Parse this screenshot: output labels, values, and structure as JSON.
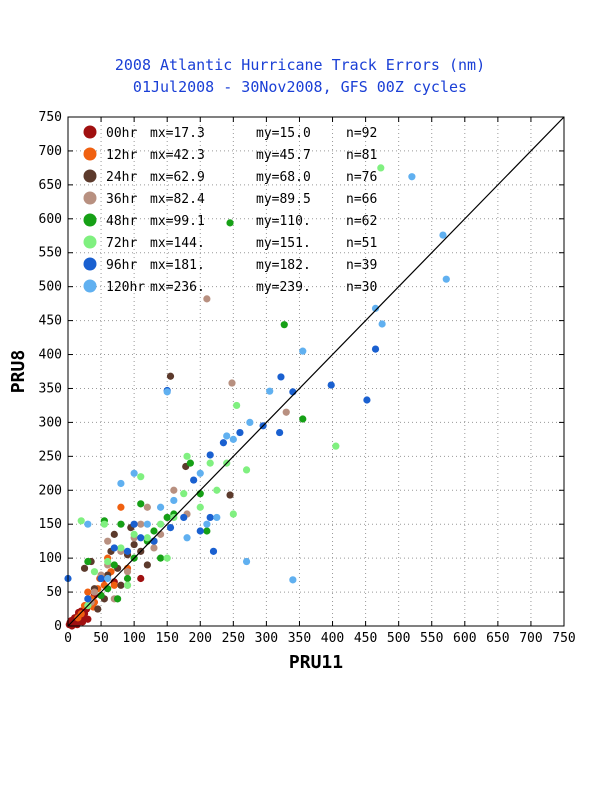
{
  "chart_data": {
    "type": "scatter",
    "title": "2008 Atlantic Hurricane Track Errors (nm)",
    "subtitle": "01Jul2008 - 30Nov2008, GFS 00Z cycles",
    "xlabel": "PRU11",
    "ylabel": "PRU8",
    "xlim": [
      0,
      750
    ],
    "ylim": [
      0,
      750
    ],
    "xticks": [
      "0",
      "50",
      "100",
      "150",
      "200",
      "250",
      "300",
      "350",
      "400",
      "450",
      "500",
      "550",
      "600",
      "650",
      "700",
      "750"
    ],
    "yticks": [
      "0",
      "50",
      "100",
      "150",
      "200",
      "250",
      "300",
      "350",
      "400",
      "450",
      "500",
      "550",
      "600",
      "650",
      "700",
      "750"
    ],
    "grid": true,
    "diagonal": true,
    "legend_position": "top-left",
    "series": [
      {
        "name": "00hr",
        "color": "#a01010",
        "mx": "mx=17.3",
        "my": "my=15.0",
        "n": "n=92",
        "points": [
          [
            2,
            2
          ],
          [
            5,
            8
          ],
          [
            8,
            3
          ],
          [
            10,
            12
          ],
          [
            12,
            5
          ],
          [
            15,
            15
          ],
          [
            18,
            10
          ],
          [
            20,
            22
          ],
          [
            22,
            6
          ],
          [
            25,
            18
          ],
          [
            28,
            25
          ],
          [
            30,
            10
          ],
          [
            33,
            30
          ],
          [
            6,
            0
          ],
          [
            3,
            5
          ],
          [
            14,
            2
          ],
          [
            40,
            45
          ],
          [
            55,
            70
          ],
          [
            70,
            65
          ],
          [
            110,
            70
          ],
          [
            16,
            20
          ],
          [
            9,
            9
          ],
          [
            24,
            14
          ]
        ]
      },
      {
        "name": "12hr",
        "color": "#f06010",
        "mx": "mx=42.3",
        "my": "my=45.7",
        "n": "n=81",
        "points": [
          [
            25,
            30
          ],
          [
            35,
            40
          ],
          [
            45,
            55
          ],
          [
            50,
            45
          ],
          [
            60,
            100
          ],
          [
            80,
            175
          ],
          [
            55,
            60
          ],
          [
            40,
            35
          ],
          [
            30,
            50
          ],
          [
            65,
            80
          ],
          [
            70,
            60
          ],
          [
            20,
            18
          ],
          [
            48,
            70
          ],
          [
            90,
            85
          ],
          [
            15,
            12
          ],
          [
            38,
            28
          ]
        ]
      },
      {
        "name": "24hr",
        "color": "#5c3a2c",
        "mx": "mx=62.9",
        "my": "my=68.0",
        "n": "n=76",
        "points": [
          [
            155,
            368
          ],
          [
            178,
            235
          ],
          [
            245,
            193
          ],
          [
            110,
            110
          ],
          [
            90,
            105
          ],
          [
            70,
            135
          ],
          [
            60,
            75
          ],
          [
            50,
            70
          ],
          [
            40,
            55
          ],
          [
            35,
            95
          ],
          [
            80,
            60
          ],
          [
            100,
            120
          ],
          [
            130,
            125
          ],
          [
            120,
            90
          ],
          [
            75,
            85
          ],
          [
            55,
            40
          ],
          [
            25,
            85
          ],
          [
            45,
            25
          ],
          [
            95,
            145
          ],
          [
            65,
            110
          ]
        ]
      },
      {
        "name": "36hr",
        "color": "#b89080",
        "mx": "mx=82.4",
        "my": "my=89.5",
        "n": "n=66",
        "points": [
          [
            210,
            482
          ],
          [
            248,
            358
          ],
          [
            330,
            315
          ],
          [
            180,
            165
          ],
          [
            150,
            160
          ],
          [
            120,
            175
          ],
          [
            100,
            130
          ],
          [
            80,
            110
          ],
          [
            60,
            90
          ],
          [
            50,
            75
          ],
          [
            90,
            80
          ],
          [
            130,
            115
          ],
          [
            110,
            150
          ],
          [
            70,
            40
          ],
          [
            40,
            50
          ],
          [
            160,
            200
          ],
          [
            140,
            135
          ],
          [
            90,
            60
          ],
          [
            60,
            125
          ],
          [
            35,
            35
          ]
        ]
      },
      {
        "name": "48hr",
        "color": "#16a016",
        "mx": "mx=99.1",
        "my": "my=110.",
        "n": "n=62",
        "points": [
          [
            245,
            594
          ],
          [
            327,
            444
          ],
          [
            355,
            305
          ],
          [
            185,
            240
          ],
          [
            150,
            160
          ],
          [
            130,
            140
          ],
          [
            100,
            100
          ],
          [
            80,
            150
          ],
          [
            60,
            55
          ],
          [
            50,
            45
          ],
          [
            160,
            165
          ],
          [
            120,
            125
          ],
          [
            90,
            70
          ],
          [
            70,
            90
          ],
          [
            210,
            140
          ],
          [
            30,
            95
          ],
          [
            110,
            180
          ],
          [
            140,
            100
          ],
          [
            55,
            155
          ],
          [
            75,
            40
          ],
          [
            200,
            195
          ]
        ]
      },
      {
        "name": "72hr",
        "color": "#80f080",
        "mx": "mx=144.",
        "my": "my=151.",
        "n": "n=51",
        "points": [
          [
            473,
            675
          ],
          [
            405,
            265
          ],
          [
            255,
            325
          ],
          [
            270,
            230
          ],
          [
            250,
            165
          ],
          [
            225,
            200
          ],
          [
            200,
            175
          ],
          [
            175,
            195
          ],
          [
            160,
            160
          ],
          [
            140,
            150
          ],
          [
            120,
            130
          ],
          [
            100,
            135
          ],
          [
            80,
            115
          ],
          [
            60,
            95
          ],
          [
            40,
            80
          ],
          [
            20,
            155
          ],
          [
            110,
            220
          ],
          [
            215,
            240
          ],
          [
            240,
            240
          ],
          [
            150,
            100
          ],
          [
            30,
            30
          ],
          [
            180,
            250
          ],
          [
            55,
            150
          ],
          [
            90,
            60
          ]
        ]
      },
      {
        "name": "96hr",
        "color": "#1a60d0",
        "mx": "mx=181.",
        "my": "my=182.",
        "n": "n=39",
        "points": [
          [
            465,
            408
          ],
          [
            452,
            333
          ],
          [
            398,
            355
          ],
          [
            340,
            345
          ],
          [
            322,
            367
          ],
          [
            320,
            285
          ],
          [
            295,
            295
          ],
          [
            260,
            285
          ],
          [
            235,
            270
          ],
          [
            215,
            252
          ],
          [
            190,
            215
          ],
          [
            150,
            347
          ],
          [
            220,
            110
          ],
          [
            200,
            140
          ],
          [
            175,
            160
          ],
          [
            155,
            145
          ],
          [
            130,
            125
          ],
          [
            110,
            130
          ],
          [
            90,
            110
          ],
          [
            70,
            115
          ],
          [
            50,
            70
          ],
          [
            30,
            40
          ],
          [
            0,
            70
          ],
          [
            100,
            150
          ],
          [
            215,
            160
          ]
        ]
      },
      {
        "name": "120hr",
        "color": "#60b0f0",
        "mx": "mx=236.",
        "my": "my=239.",
        "n": "n=30",
        "points": [
          [
            520,
            662
          ],
          [
            567,
            576
          ],
          [
            572,
            511
          ],
          [
            475,
            445
          ],
          [
            465,
            468
          ],
          [
            355,
            405
          ],
          [
            305,
            346
          ],
          [
            340,
            68
          ],
          [
            270,
            95
          ],
          [
            275,
            300
          ],
          [
            250,
            275
          ],
          [
            225,
            160
          ],
          [
            200,
            225
          ],
          [
            180,
            130
          ],
          [
            160,
            185
          ],
          [
            150,
            345
          ],
          [
            140,
            175
          ],
          [
            120,
            150
          ],
          [
            100,
            225
          ],
          [
            80,
            210
          ],
          [
            60,
            70
          ],
          [
            30,
            150
          ],
          [
            210,
            150
          ],
          [
            240,
            280
          ]
        ]
      }
    ]
  }
}
